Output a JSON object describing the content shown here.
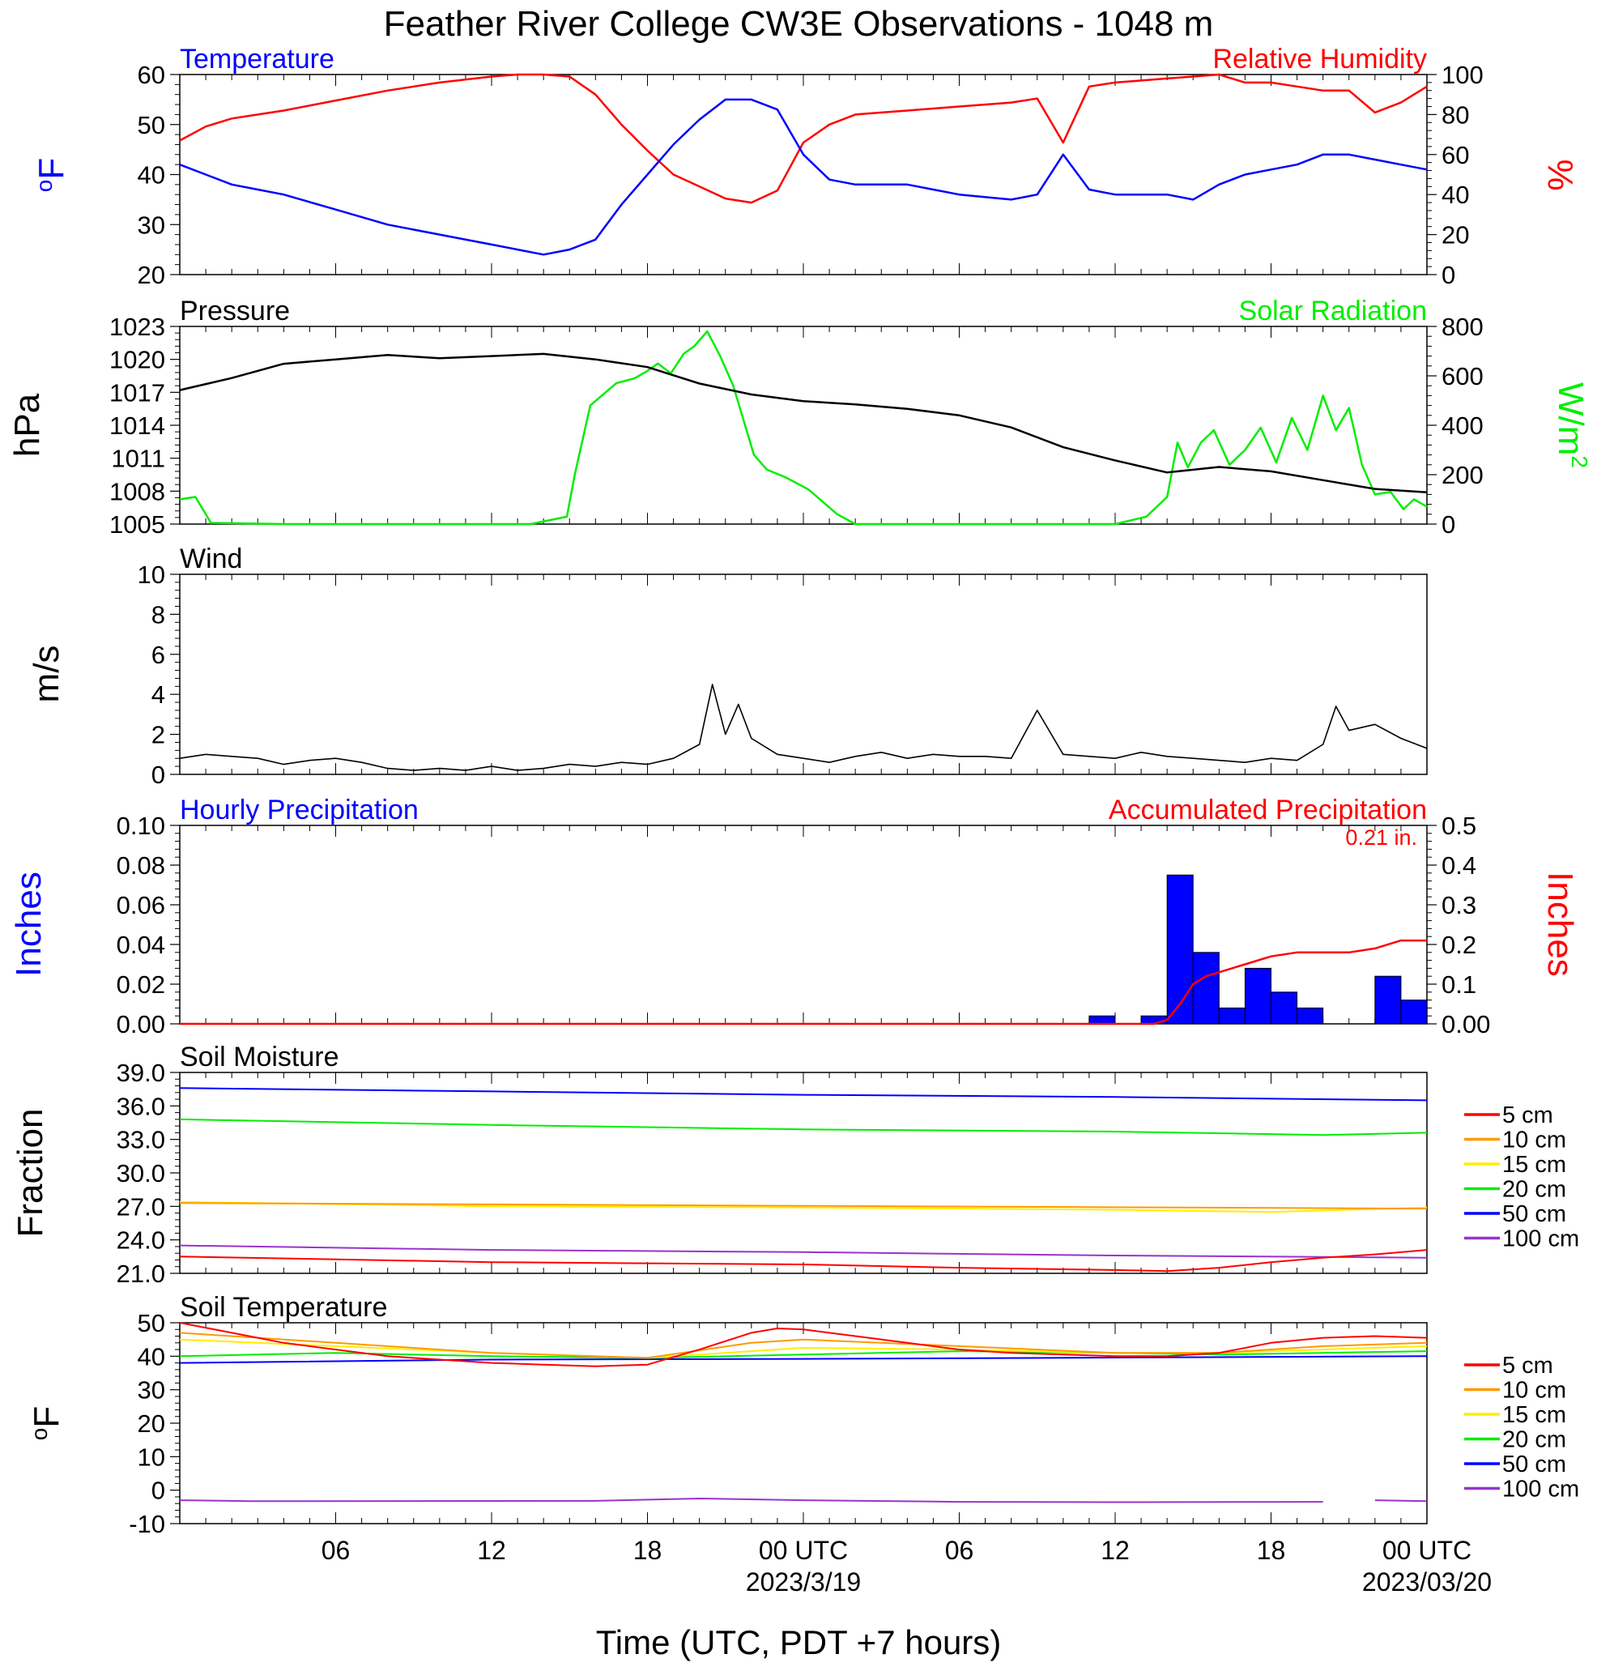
{
  "title": "Feather River College CW3E Observations - 1048 m",
  "xlabel": "Time (UTC, PDT +7 hours)",
  "x_ticks": [
    "06",
    "12",
    "18",
    "00 UTC",
    "06",
    "12",
    "18",
    "00 UTC"
  ],
  "date_labels": [
    "2023/3/19",
    "2023/03/20"
  ],
  "colors": {
    "blue": "#0000ff",
    "red": "#ff0000",
    "green": "#00ee00",
    "black": "#000000",
    "orange": "#ff9900",
    "yellow": "#ffee00",
    "purple": "#9933cc"
  },
  "chart_data": [
    {
      "type": "line",
      "panel": "temp_rh",
      "left_label": "Temperature",
      "right_label": "Relative Humidity",
      "ylabel_left": "oF",
      "ylabel_right": "%",
      "xlim_hours": [
        0,
        48
      ],
      "ylim_left": [
        20,
        60
      ],
      "ylim_right": [
        0,
        100
      ],
      "yticks_left": [
        20,
        30,
        40,
        50,
        60
      ],
      "yticks_right": [
        0,
        20,
        40,
        60,
        80,
        100
      ],
      "series": [
        {
          "name": "Temperature",
          "axis": "left",
          "color": "#0000ff",
          "x": [
            0,
            1,
            2,
            3,
            4,
            6,
            8,
            10,
            12,
            13,
            14,
            15,
            16,
            17,
            18,
            19,
            20,
            21,
            22,
            23,
            24,
            25,
            26,
            27,
            28,
            30,
            32,
            33,
            34,
            35,
            36,
            37,
            38,
            39,
            40,
            41,
            42,
            43,
            44,
            45,
            46,
            47,
            48
          ],
          "y": [
            42,
            40,
            38,
            37,
            36,
            33,
            30,
            28,
            26,
            25,
            24,
            25,
            27,
            34,
            40,
            46,
            51,
            55,
            55,
            53,
            44,
            39,
            38,
            38,
            38,
            36,
            35,
            36,
            44,
            37,
            36,
            36,
            36,
            35,
            38,
            40,
            41,
            42,
            44,
            44,
            43,
            42,
            41
          ]
        },
        {
          "name": "Relative Humidity",
          "axis": "right",
          "color": "#ff0000",
          "x": [
            0,
            1,
            2,
            3,
            4,
            6,
            8,
            10,
            12,
            13,
            14,
            15,
            16,
            17,
            18,
            19,
            20,
            21,
            22,
            23,
            24,
            25,
            26,
            27,
            28,
            30,
            32,
            33,
            34,
            35,
            36,
            37,
            38,
            39,
            40,
            41,
            42,
            43,
            44,
            45,
            46,
            47,
            48
          ],
          "y": [
            67,
            74,
            78,
            80,
            82,
            87,
            92,
            96,
            99,
            100,
            100,
            99,
            90,
            75,
            62,
            50,
            44,
            38,
            36,
            42,
            66,
            75,
            80,
            81,
            82,
            84,
            86,
            88,
            66,
            94,
            96,
            97,
            98,
            99,
            100,
            96,
            96,
            94,
            92,
            92,
            81,
            86,
            94
          ]
        }
      ]
    },
    {
      "type": "line",
      "panel": "pressure_solar",
      "left_label": "Pressure",
      "right_label": "Solar Radiation",
      "ylabel_left": "hPa",
      "ylabel_right": "W/m2",
      "ylim_left": [
        1005,
        1023
      ],
      "ylim_right": [
        0,
        800
      ],
      "yticks_left": [
        1005,
        1008,
        1011,
        1014,
        1017,
        1020,
        1023
      ],
      "yticks_right": [
        0,
        200,
        400,
        600,
        800
      ],
      "series": [
        {
          "name": "Pressure",
          "axis": "left",
          "color": "#000000",
          "x": [
            0,
            2,
            4,
            6,
            8,
            10,
            12,
            14,
            16,
            18,
            20,
            22,
            24,
            26,
            28,
            30,
            32,
            34,
            36,
            38,
            40,
            42,
            44,
            46,
            48
          ],
          "y": [
            1017.2,
            1018.3,
            1019.6,
            1020.0,
            1020.4,
            1020.1,
            1020.3,
            1020.5,
            1020.0,
            1019.3,
            1017.8,
            1016.8,
            1016.2,
            1015.9,
            1015.5,
            1014.9,
            1013.8,
            1012.0,
            1010.8,
            1009.7,
            1010.2,
            1009.8,
            1009.0,
            1008.2,
            1007.9
          ]
        },
        {
          "name": "Solar Radiation",
          "axis": "right",
          "color": "#00ee00",
          "x": [
            0,
            0.6,
            1.2,
            4,
            8,
            12,
            13.5,
            14.9,
            15.2,
            15.8,
            16.8,
            17.5,
            18,
            18.4,
            18.9,
            19.4,
            19.8,
            20.3,
            20.8,
            21.3,
            21.7,
            22.1,
            22.6,
            23.3,
            24.2,
            25.3,
            26,
            30,
            34,
            36,
            37.2,
            38,
            38.4,
            38.8,
            39.3,
            39.8,
            40.4,
            41,
            41.6,
            42.2,
            42.8,
            43.4,
            44,
            44.5,
            45,
            45.5,
            46,
            46.6,
            47.1,
            47.5,
            48
          ],
          "y": [
            100,
            110,
            5,
            0,
            0,
            0,
            0,
            30,
            200,
            480,
            570,
            590,
            620,
            650,
            610,
            690,
            720,
            780,
            680,
            560,
            420,
            280,
            220,
            190,
            140,
            40,
            0,
            0,
            0,
            0,
            30,
            110,
            330,
            230,
            330,
            380,
            240,
            300,
            390,
            250,
            430,
            300,
            520,
            380,
            470,
            240,
            120,
            130,
            60,
            100,
            70
          ]
        }
      ]
    },
    {
      "type": "line",
      "panel": "wind",
      "left_label": "Wind",
      "ylabel_left": "m/s",
      "ylim_left": [
        0,
        10
      ],
      "yticks_left": [
        0,
        2,
        4,
        6,
        8,
        10
      ],
      "series": [
        {
          "name": "Wind",
          "axis": "left",
          "color": "#000000",
          "x": [
            0,
            1,
            2,
            3,
            4,
            5,
            6,
            7,
            8,
            9,
            10,
            11,
            12,
            13,
            14,
            15,
            16,
            17,
            18,
            19,
            20,
            20.5,
            21,
            21.5,
            22,
            23,
            24,
            25,
            26,
            27,
            28,
            29,
            30,
            31,
            32,
            33,
            34,
            35,
            36,
            37,
            38,
            39,
            40,
            41,
            42,
            43,
            44,
            44.5,
            45,
            46,
            47,
            48
          ],
          "y": [
            0.8,
            1.0,
            0.9,
            0.8,
            0.5,
            0.7,
            0.8,
            0.6,
            0.3,
            0.2,
            0.3,
            0.2,
            0.4,
            0.2,
            0.3,
            0.5,
            0.4,
            0.6,
            0.5,
            0.8,
            1.5,
            4.5,
            2.0,
            3.5,
            1.8,
            1.0,
            0.8,
            0.6,
            0.9,
            1.1,
            0.8,
            1.0,
            0.9,
            0.9,
            0.8,
            3.2,
            1.0,
            0.9,
            0.8,
            1.1,
            0.9,
            0.8,
            0.7,
            0.6,
            0.8,
            0.7,
            1.5,
            3.4,
            2.2,
            2.5,
            1.8,
            1.3
          ]
        }
      ]
    },
    {
      "type": "bar",
      "panel": "precip",
      "left_label": "Hourly Precipitation",
      "right_label": "Accumulated Precipitation",
      "total_label": "0.21 in.",
      "ylabel_left": "Inches",
      "ylabel_right": "Inches",
      "ylim_left": [
        0,
        0.1
      ],
      "ylim_right": [
        0,
        0.5
      ],
      "yticks_left": [
        "0.00",
        "0.02",
        "0.04",
        "0.06",
        "0.08",
        "0.10"
      ],
      "yticks_right": [
        "0.00",
        "0.1",
        "0.2",
        "0.3",
        "0.4",
        "0.5"
      ],
      "bars": {
        "name": "Hourly Precipitation",
        "x_start": [
          35,
          37,
          38,
          39,
          40,
          41,
          42,
          43,
          46,
          47
        ],
        "values": [
          0.004,
          0.004,
          0.075,
          0.036,
          0.008,
          0.028,
          0.016,
          0.008,
          0.024,
          0.012
        ]
      },
      "series": [
        {
          "name": "Accumulated Precipitation",
          "axis": "right",
          "color": "#ff0000",
          "x": [
            0,
            35,
            37.5,
            38,
            38.5,
            39,
            39.5,
            40,
            41,
            42,
            43,
            45,
            46,
            47,
            47.5,
            48
          ],
          "y": [
            0,
            0,
            0,
            0.01,
            0.05,
            0.1,
            0.12,
            0.13,
            0.15,
            0.17,
            0.18,
            0.18,
            0.19,
            0.21,
            0.21,
            0.21
          ]
        }
      ]
    },
    {
      "type": "line",
      "panel": "soil_moisture",
      "left_label": "Soil Moisture",
      "ylabel_left": "Fraction",
      "ylim_left": [
        21,
        39
      ],
      "yticks_left": [
        "21.0",
        "24.0",
        "27.0",
        "30.0",
        "33.0",
        "36.0",
        "39.0"
      ],
      "legend": [
        "5 cm",
        "10 cm",
        "15 cm",
        "20 cm",
        "50 cm",
        "100 cm"
      ],
      "series": [
        {
          "name": "5 cm",
          "color": "#ff0000",
          "x": [
            0,
            12,
            24,
            30,
            36,
            38,
            40,
            42,
            44,
            46,
            48
          ],
          "y": [
            22.5,
            22.0,
            21.8,
            21.5,
            21.3,
            21.2,
            21.5,
            22.0,
            22.4,
            22.7,
            23.1
          ]
        },
        {
          "name": "10 cm",
          "color": "#ff9900",
          "x": [
            0,
            48
          ],
          "y": [
            27.3,
            26.8
          ]
        },
        {
          "name": "15 cm",
          "color": "#ffee00",
          "x": [
            0,
            12,
            24,
            36,
            42,
            48
          ],
          "y": [
            27.4,
            27.0,
            26.9,
            26.7,
            26.5,
            26.9
          ]
        },
        {
          "name": "20 cm",
          "color": "#00ee00",
          "x": [
            0,
            12,
            24,
            36,
            44,
            48
          ],
          "y": [
            34.8,
            34.3,
            33.9,
            33.7,
            33.4,
            33.6
          ]
        },
        {
          "name": "50 cm",
          "color": "#0000ff",
          "x": [
            0,
            12,
            24,
            36,
            48
          ],
          "y": [
            37.6,
            37.3,
            37.0,
            36.8,
            36.5
          ]
        },
        {
          "name": "100 cm",
          "color": "#9933cc",
          "x": [
            0,
            12,
            24,
            36,
            48
          ],
          "y": [
            23.5,
            23.1,
            22.9,
            22.6,
            22.4
          ]
        }
      ]
    },
    {
      "type": "line",
      "panel": "soil_temperature",
      "left_label": "Soil Temperature",
      "ylabel_left": "oF",
      "ylim_left": [
        -10,
        50
      ],
      "yticks_left": [
        -10,
        0,
        10,
        20,
        30,
        40,
        50
      ],
      "legend": [
        "5 cm",
        "10 cm",
        "15 cm",
        "20 cm",
        "50 cm",
        "100 cm"
      ],
      "series": [
        {
          "name": "5 cm",
          "color": "#ff0000",
          "x": [
            0,
            2,
            4,
            6,
            8,
            10,
            12,
            14,
            16,
            18,
            20,
            22,
            23,
            24,
            26,
            28,
            30,
            32,
            34,
            36,
            38,
            40,
            42,
            44,
            46,
            48
          ],
          "y": [
            50,
            47,
            44,
            42,
            40,
            39,
            38,
            37.5,
            37,
            37.5,
            42,
            47,
            48.3,
            48,
            46,
            44,
            42,
            41,
            40.5,
            40,
            40,
            41,
            44,
            45.5,
            46,
            45.5
          ]
        },
        {
          "name": "10 cm",
          "color": "#ff9900",
          "x": [
            0,
            6,
            12,
            18,
            22,
            24,
            30,
            36,
            40,
            44,
            48
          ],
          "y": [
            47,
            44,
            41,
            39.5,
            44,
            45,
            43,
            41,
            41,
            43,
            44
          ]
        },
        {
          "name": "15 cm",
          "color": "#ffee00",
          "x": [
            0,
            6,
            12,
            18,
            24,
            30,
            36,
            40,
            44,
            48
          ],
          "y": [
            45,
            43,
            41,
            39.5,
            42.5,
            42,
            41,
            41,
            42,
            43
          ]
        },
        {
          "name": "20 cm",
          "color": "#00ee00",
          "x": [
            0,
            6,
            12,
            18,
            24,
            30,
            36,
            40,
            44,
            48
          ],
          "y": [
            40,
            41,
            40,
            39.5,
            40.5,
            41.5,
            41,
            40.5,
            41,
            41.5
          ]
        },
        {
          "name": "50 cm",
          "color": "#0000ff",
          "x": [
            0,
            12,
            24,
            36,
            48
          ],
          "y": [
            38,
            39,
            39.2,
            39.6,
            40
          ]
        },
        {
          "name": "100 cm",
          "color": "#9933cc",
          "x": [
            0,
            2,
            2.7,
            16,
            20,
            24,
            30,
            36,
            44,
            44.2,
            46,
            48
          ],
          "y": [
            -3,
            -3.2,
            -3.3,
            -3.2,
            -2.5,
            -3,
            -3.5,
            -3.6,
            -3.5,
            null,
            -3,
            -3.3
          ]
        }
      ]
    }
  ]
}
